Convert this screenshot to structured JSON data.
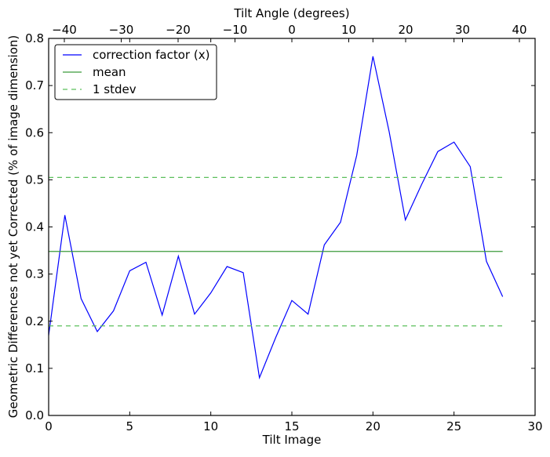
{
  "chart_data": {
    "type": "line",
    "xlabel": "Tilt Image",
    "ylabel": "Geometric Differences not yet Corrected (% of image dimension)",
    "top_xlabel": "Tilt Angle (degrees)",
    "xlim": [
      0,
      30
    ],
    "ylim": [
      0,
      0.8
    ],
    "top_xlim": [
      -42.76,
      42.76
    ],
    "xticks": [
      "0",
      "5",
      "10",
      "15",
      "20",
      "25",
      "30"
    ],
    "yticks": [
      "0.0",
      "0.1",
      "0.2",
      "0.3",
      "0.4",
      "0.5",
      "0.6",
      "0.7",
      "0.8"
    ],
    "top_xticks": [
      "−40",
      "−30",
      "−20",
      "−10",
      "0",
      "10",
      "20",
      "30",
      "40"
    ],
    "grid": false,
    "legend_position": "top-left",
    "series": [
      {
        "name": "correction factor (x)",
        "color": "#0000ff",
        "style": "solid",
        "x": [
          0,
          1,
          2,
          3,
          4,
          5,
          6,
          7,
          8,
          9,
          10,
          11,
          12,
          13,
          14,
          15,
          16,
          17,
          18,
          19,
          20,
          21,
          22,
          23,
          24,
          25,
          26,
          27,
          28
        ],
        "values": [
          0.17,
          0.425,
          0.248,
          0.178,
          0.222,
          0.307,
          0.325,
          0.213,
          0.338,
          0.215,
          0.26,
          0.316,
          0.303,
          0.08,
          0.165,
          0.244,
          0.215,
          0.362,
          0.41,
          0.552,
          0.762,
          0.602,
          0.415,
          0.49,
          0.56,
          0.58,
          0.528,
          0.327,
          0.252
        ]
      },
      {
        "name": "mean",
        "color": "#3a9a3a",
        "style": "solid",
        "x": [
          0,
          28
        ],
        "values": [
          0.348,
          0.348
        ]
      },
      {
        "name": "1 stdev",
        "color": "#5cc05c",
        "style": "dashed",
        "x": [
          0,
          28
        ],
        "values": [
          0.505,
          0.505
        ]
      },
      {
        "name": "1 stdev (lower)",
        "color": "#5cc05c",
        "style": "dashed",
        "x": [
          0,
          28
        ],
        "values": [
          0.19,
          0.19
        ]
      }
    ],
    "legend": [
      "correction factor (x)",
      "mean",
      "1 stdev"
    ]
  }
}
